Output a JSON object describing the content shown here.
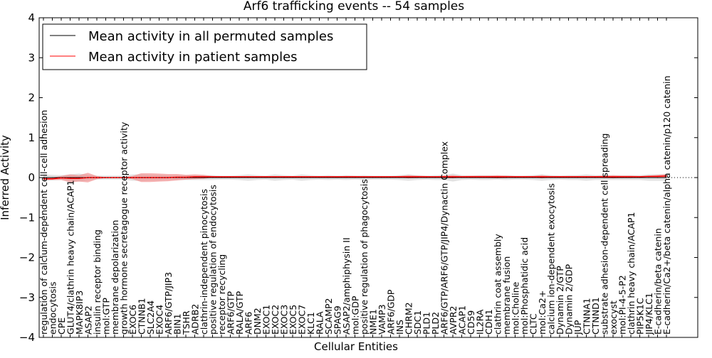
{
  "chart_data": {
    "type": "line",
    "title": "Arf6 trafficking events -- 54 samples",
    "xlabel": "Cellular Entities",
    "ylabel": "Inferred Activity",
    "ylim": [
      -4,
      4
    ],
    "yticks": [
      "−4",
      "−3",
      "−2",
      "−1",
      "0",
      "1",
      "2",
      "3",
      "4"
    ],
    "legend_placement": "top-left",
    "colors": {
      "permuted": "#000000",
      "patient": "#ff0000",
      "permuted_band": "#c8c8c8",
      "patient_band": "#f08080"
    },
    "categories": [
      "regulation of calcium-dependent cell-cell adhesion",
      "endocytosis",
      "CPE",
      "GLUT4/clathrin heavy chain/ACAP1",
      "MAPK8IP3",
      "ASAP2",
      "insulin receptor binding",
      "mol:GTP",
      "membrane depolarization",
      "growth hormone secretagogue receptor activity",
      "EXOC6",
      "CTNNB1",
      "SLC2A4",
      "EXOC4",
      "ARF6/GTP/JIP3",
      "BIN1",
      "TSHR",
      "ADRB2",
      "clathrin-independent pinocytosis",
      "positive regulation of endocytosis",
      "receptor recycling",
      "ARF6/GTP",
      "RALA/GTP",
      "ARF6",
      "DNM2",
      "EXOC1",
      "EXOC2",
      "EXOC3",
      "EXOC5",
      "EXOC7",
      "KLC1",
      "RALA",
      "SCAMP2",
      "SPAG9",
      "ASAP2/amphiphysin II",
      "mol:GDP",
      "positive regulation of phagocytosis",
      "NME1",
      "VAMP3",
      "ARF6/GDP",
      "INS",
      "CHRM2",
      "SDC1",
      "PLD1",
      "PLD2",
      "ARF6/GTP/ARF6/GTP/JIP4/Dynactin Complex",
      "AVPR2",
      "ACAP1",
      "CD59",
      "IL2RA",
      "CDH1",
      "clathrin coat assembly",
      "membrane fusion",
      "mol:Choline",
      "mol:Phosphatidic acid",
      "CLTC",
      "mol:Ca2+",
      "calcium ion-dependent exocytosis",
      "Dynamin 2/GTP",
      "Dynamin 2/GDP",
      "JUP",
      "CTNNA1",
      "CTNND1",
      "substrate adhesion-dependent cell spreading",
      "exocyst",
      "mol:PI-4-5-P2",
      "clathrin heavy chain/ACAP1",
      "PIP5K1C",
      "JIP4/KLC1",
      "E-cadherin/beta catenin",
      "E-cadherin/Ca2+/beta catenin/alpha catenin/p120 catenin"
    ],
    "series": [
      {
        "name": "Mean activity in all permuted samples",
        "values": [
          0,
          0,
          0,
          0,
          0,
          0,
          0,
          0,
          0,
          0,
          0,
          0,
          0,
          0,
          0,
          0,
          0,
          0,
          0,
          0,
          0,
          0,
          0,
          0,
          0,
          0,
          0,
          0,
          0,
          0,
          0,
          0,
          0,
          0,
          0,
          0,
          0,
          0,
          0,
          0,
          0,
          0,
          0,
          0,
          0,
          0,
          0,
          0,
          0,
          0,
          0,
          0,
          0,
          0,
          0,
          0,
          0,
          0,
          0,
          0,
          0,
          0,
          0,
          0,
          0,
          0,
          0,
          0,
          0,
          0,
          0
        ],
        "spread": [
          0.08,
          0.07,
          0.06,
          0.08,
          0.1,
          0.07,
          0.05,
          0.05,
          0.05,
          0.05,
          0.08,
          0.08,
          0.07,
          0.07,
          0.06,
          0.06,
          0.06,
          0.06,
          0.06,
          0.06,
          0.05,
          0.05,
          0.06,
          0.08,
          0.06,
          0.05,
          0.08,
          0.06,
          0.05,
          0.08,
          0.06,
          0.05,
          0.06,
          0.05,
          0.06,
          0.05,
          0.06,
          0.05,
          0.05,
          0.05,
          0.06,
          0.08,
          0.06,
          0.05,
          0.06,
          0.06,
          0.1,
          0.06,
          0.05,
          0.06,
          0.06,
          0.05,
          0.06,
          0.05,
          0.05,
          0.06,
          0.08,
          0.06,
          0.05,
          0.06,
          0.06,
          0.08,
          0.06,
          0.06,
          0.06,
          0.06,
          0.06,
          0.06,
          0.08,
          0.08,
          0.08
        ]
      },
      {
        "name": "Mean activity in patient samples",
        "values": [
          -0.03,
          -0.03,
          -0.01,
          -0.02,
          -0.02,
          0,
          0,
          0,
          0,
          0,
          0,
          0,
          0,
          0,
          0,
          0.01,
          0.01,
          0.02,
          0.02,
          0.02,
          0.02,
          0.02,
          0.02,
          0.02,
          0.02,
          0.02,
          0.02,
          0.02,
          0.02,
          0.02,
          0.02,
          0.02,
          0.02,
          0.02,
          0.02,
          0.02,
          0.02,
          0.02,
          0.02,
          0.02,
          0.02,
          0.02,
          0.02,
          0.02,
          0.02,
          0.02,
          0.02,
          0.02,
          0.02,
          0.02,
          0.02,
          0.02,
          0.02,
          0.02,
          0.02,
          0.02,
          0.02,
          0.02,
          0.02,
          0.02,
          0.02,
          0.02,
          0.02,
          0.02,
          0.02,
          0.02,
          0.02,
          0.02,
          0.03,
          0.03,
          0.04
        ],
        "spread": [
          0.03,
          0.03,
          0.05,
          0.1,
          0.08,
          0.12,
          0.04,
          0.01,
          0.01,
          0.01,
          0.04,
          0.11,
          0.11,
          0.1,
          0.09,
          0.08,
          0.06,
          0.06,
          0.05,
          0.02,
          0.01,
          0.01,
          0.01,
          0.01,
          0.01,
          0.01,
          0.01,
          0.01,
          0.01,
          0.01,
          0.01,
          0.01,
          0.01,
          0.01,
          0.02,
          0.02,
          0.01,
          0.01,
          0.01,
          0.01,
          0.02,
          0.04,
          0.03,
          0.02,
          0.01,
          0.03,
          0.04,
          0.02,
          0.03,
          0.03,
          0.03,
          0.04,
          0.03,
          0.02,
          0.02,
          0.02,
          0.04,
          0.02,
          0.02,
          0.02,
          0.02,
          0.02,
          0.02,
          0.03,
          0.04,
          0.03,
          0.03,
          0.02,
          0.02,
          0.04,
          0.05
        ]
      }
    ]
  }
}
